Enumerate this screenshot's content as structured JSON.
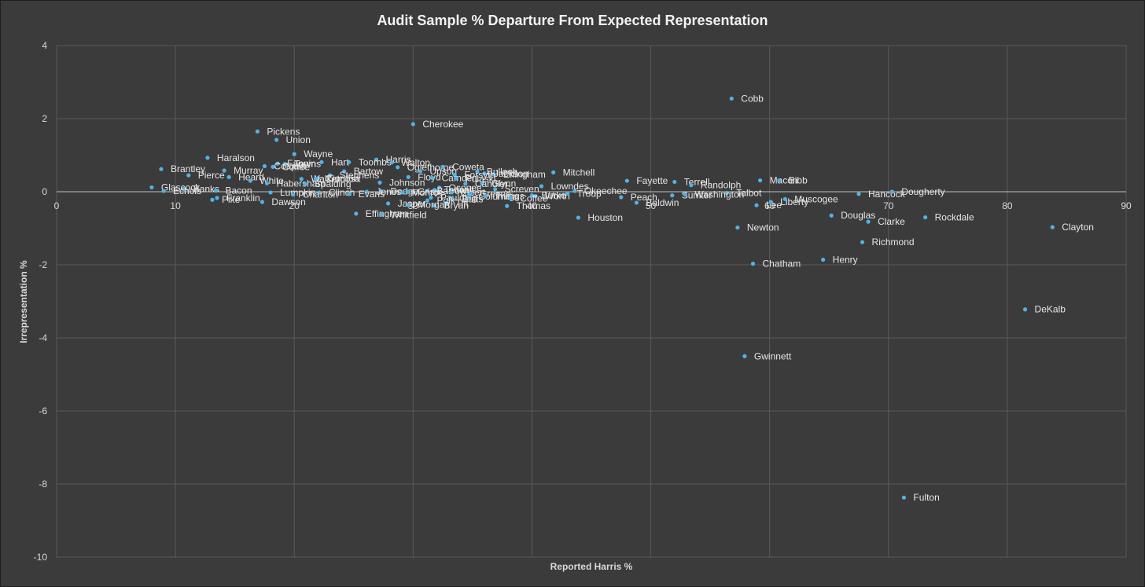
{
  "chart_data": {
    "type": "scatter",
    "title": "Audit Sample % Departure From Expected Representation",
    "xlabel": "Reported Harris %",
    "ylabel": "Irrepresentation %",
    "xlim": [
      0,
      90
    ],
    "ylim": [
      -10,
      4
    ],
    "xticks": [
      0,
      10,
      20,
      30,
      40,
      50,
      60,
      70,
      80,
      90
    ],
    "yticks": [
      4,
      2,
      0,
      -2,
      -4,
      -6,
      -8,
      -10
    ],
    "grid": true,
    "legend": "none",
    "colors": {
      "point": "#4fb3e8",
      "gridline": "#5a5a5a",
      "zero_line": "#bfbfbf",
      "background": "#3b3b3b"
    },
    "points": [
      {
        "label": "Cobb",
        "x": 56.8,
        "y": 2.55
      },
      {
        "label": "Cherokee",
        "x": 30.0,
        "y": 1.85
      },
      {
        "label": "Pickens",
        "x": 16.9,
        "y": 1.65
      },
      {
        "label": "Union",
        "x": 18.5,
        "y": 1.42
      },
      {
        "label": "Wayne",
        "x": 20.0,
        "y": 1.03
      },
      {
        "label": "Haralson",
        "x": 12.7,
        "y": 0.93
      },
      {
        "label": "Harris",
        "x": 26.9,
        "y": 0.88
      },
      {
        "label": "Hart",
        "x": 22.3,
        "y": 0.81
      },
      {
        "label": "Toombs",
        "x": 24.6,
        "y": 0.81
      },
      {
        "label": "Walton",
        "x": 28.2,
        "y": 0.8
      },
      {
        "label": "Fannin",
        "x": 18.6,
        "y": 0.77
      },
      {
        "label": "Towns",
        "x": 19.2,
        "y": 0.76
      },
      {
        "label": "Colquitt",
        "x": 17.5,
        "y": 0.7
      },
      {
        "label": "Coffee",
        "x": 18.2,
        "y": 0.68
      },
      {
        "label": "Oglethorpe",
        "x": 28.7,
        "y": 0.67
      },
      {
        "label": "Coweta",
        "x": 32.5,
        "y": 0.68
      },
      {
        "label": "Brantley",
        "x": 8.8,
        "y": 0.62
      },
      {
        "label": "Murray",
        "x": 14.1,
        "y": 0.58
      },
      {
        "label": "Bartow",
        "x": 24.2,
        "y": 0.56
      },
      {
        "label": "Upson",
        "x": 30.6,
        "y": 0.56
      },
      {
        "label": "Bulloch",
        "x": 35.4,
        "y": 0.55
      },
      {
        "label": "Mitchell",
        "x": 41.8,
        "y": 0.53
      },
      {
        "label": "Jackson",
        "x": 36.0,
        "y": 0.5
      },
      {
        "label": "Effingham",
        "x": 36.8,
        "y": 0.47
      },
      {
        "label": "Forsyth",
        "x": 33.5,
        "y": 0.46
      },
      {
        "label": "Pierce",
        "x": 11.1,
        "y": 0.45
      },
      {
        "label": "Stephens",
        "x": 23.0,
        "y": 0.45
      },
      {
        "label": "Heard",
        "x": 14.5,
        "y": 0.4
      },
      {
        "label": "Floyd",
        "x": 29.6,
        "y": 0.4
      },
      {
        "label": "Camden",
        "x": 31.6,
        "y": 0.38
      },
      {
        "label": "Gordon",
        "x": 22.0,
        "y": 0.37
      },
      {
        "label": "Pulaski",
        "x": 33.6,
        "y": 0.36
      },
      {
        "label": "Walker",
        "x": 20.6,
        "y": 0.35
      },
      {
        "label": "Catoosa",
        "x": 21.8,
        "y": 0.35
      },
      {
        "label": "White",
        "x": 16.3,
        "y": 0.3
      },
      {
        "label": "Fayette",
        "x": 48.0,
        "y": 0.3
      },
      {
        "label": "Macon",
        "x": 59.2,
        "y": 0.31
      },
      {
        "label": "Bibb",
        "x": 60.8,
        "y": 0.31
      },
      {
        "label": "Terrell",
        "x": 52.0,
        "y": 0.27
      },
      {
        "label": "Habersham",
        "x": 17.7,
        "y": 0.23
      },
      {
        "label": "Spalding",
        "x": 20.9,
        "y": 0.22
      },
      {
        "label": "Johnson",
        "x": 27.2,
        "y": 0.25
      },
      {
        "label": "Glynn",
        "x": 35.8,
        "y": 0.23
      },
      {
        "label": "Candler",
        "x": 34.4,
        "y": 0.22
      },
      {
        "label": "Randolph",
        "x": 53.4,
        "y": 0.18
      },
      {
        "label": "Lowndes",
        "x": 40.8,
        "y": 0.15
      },
      {
        "label": "Glascock",
        "x": 8.0,
        "y": 0.12
      },
      {
        "label": "Banks",
        "x": 10.7,
        "y": 0.08
      },
      {
        "label": "Oconee",
        "x": 32.2,
        "y": 0.11
      },
      {
        "label": "Bacon",
        "x": 13.4,
        "y": 0.03
      },
      {
        "label": "Screven",
        "x": 36.9,
        "y": 0.07
      },
      {
        "label": "Tattnall",
        "x": 31.8,
        "y": 0.05
      },
      {
        "label": "Barrow",
        "x": 31.2,
        "y": 0.02
      },
      {
        "label": "Dodge",
        "x": 27.3,
        "y": 0.01
      },
      {
        "label": "Jones",
        "x": 26.1,
        "y": 0.0
      },
      {
        "label": "Crisp",
        "x": 29.6,
        "y": 0.0
      },
      {
        "label": "Monroe",
        "x": 29.1,
        "y": -0.02
      },
      {
        "label": "Okeechee",
        "x": 43.6,
        "y": 0.02
      },
      {
        "label": "Elbert",
        "x": 33.2,
        "y": -0.02
      },
      {
        "label": "Greene",
        "x": 34.8,
        "y": -0.05
      },
      {
        "label": "Talbot",
        "x": 56.4,
        "y": -0.03
      },
      {
        "label": "Clinch",
        "x": 22.1,
        "y": -0.02
      },
      {
        "label": "Evans",
        "x": 24.6,
        "y": -0.06
      },
      {
        "label": "Lumpkin",
        "x": 18.0,
        "y": -0.02
      },
      {
        "label": "Echols",
        "x": 9.0,
        "y": 0.02
      },
      {
        "label": "Charlton",
        "x": 19.9,
        "y": -0.08
      },
      {
        "label": "Pike",
        "x": 13.1,
        "y": -0.22
      },
      {
        "label": "Dawson",
        "x": 17.3,
        "y": -0.28
      },
      {
        "label": "Franklin",
        "x": 13.5,
        "y": -0.17
      },
      {
        "label": "Paulding",
        "x": 31.5,
        "y": -0.16
      },
      {
        "label": "Columbia",
        "x": 34.7,
        "y": -0.13
      },
      {
        "label": "Burke",
        "x": 40.0,
        "y": -0.1
      },
      {
        "label": "Sumter",
        "x": 51.8,
        "y": -0.1
      },
      {
        "label": "Liberty",
        "x": 60.1,
        "y": -0.28
      },
      {
        "label": "Twiggs",
        "x": 36.1,
        "y": -0.12
      },
      {
        "label": "Butts",
        "x": 33.3,
        "y": -0.2
      },
      {
        "label": "Worth",
        "x": 40.3,
        "y": -0.12
      },
      {
        "label": "Coffee",
        "x": 38.2,
        "y": -0.18
      },
      {
        "label": "Polk",
        "x": 31.2,
        "y": -0.24
      },
      {
        "label": "Troup",
        "x": 43.0,
        "y": -0.05
      },
      {
        "label": "Peach",
        "x": 47.5,
        "y": -0.15
      },
      {
        "label": "Washington",
        "x": 52.9,
        "y": -0.08
      },
      {
        "label": "Jasper",
        "x": 27.9,
        "y": -0.32
      },
      {
        "label": "Tift",
        "x": 32.8,
        "y": -0.31
      },
      {
        "label": "Baldwin",
        "x": 48.8,
        "y": -0.3
      },
      {
        "label": "Lee",
        "x": 58.9,
        "y": -0.37
      },
      {
        "label": "Thomas",
        "x": 37.9,
        "y": -0.39
      },
      {
        "label": "Bryan",
        "x": 31.8,
        "y": -0.38
      },
      {
        "label": "Morgan",
        "x": 29.6,
        "y": -0.36
      },
      {
        "label": "Effingham",
        "x": 25.2,
        "y": -0.6
      },
      {
        "label": "Whitfield",
        "x": 27.3,
        "y": -0.63
      },
      {
        "label": "Muscogee",
        "x": 61.3,
        "y": -0.2
      },
      {
        "label": "Hancock",
        "x": 67.5,
        "y": -0.06
      },
      {
        "label": "Dougherty",
        "x": 70.3,
        "y": 0.0
      },
      {
        "label": "Houston",
        "x": 43.9,
        "y": -0.71
      },
      {
        "label": "Douglas",
        "x": 65.2,
        "y": -0.65
      },
      {
        "label": "Clarke",
        "x": 68.3,
        "y": -0.82
      },
      {
        "label": "Rockdale",
        "x": 73.1,
        "y": -0.7
      },
      {
        "label": "Clayton",
        "x": 83.8,
        "y": -0.97
      },
      {
        "label": "Newton",
        "x": 57.3,
        "y": -0.98
      },
      {
        "label": "Richmond",
        "x": 67.8,
        "y": -1.38
      },
      {
        "label": "Chatham",
        "x": 58.6,
        "y": -1.97
      },
      {
        "label": "Henry",
        "x": 64.5,
        "y": -1.86
      },
      {
        "label": "DeKalb",
        "x": 81.5,
        "y": -3.22
      },
      {
        "label": "Gwinnett",
        "x": 57.9,
        "y": -4.5
      },
      {
        "label": "Fulton",
        "x": 71.3,
        "y": -8.37
      }
    ]
  }
}
